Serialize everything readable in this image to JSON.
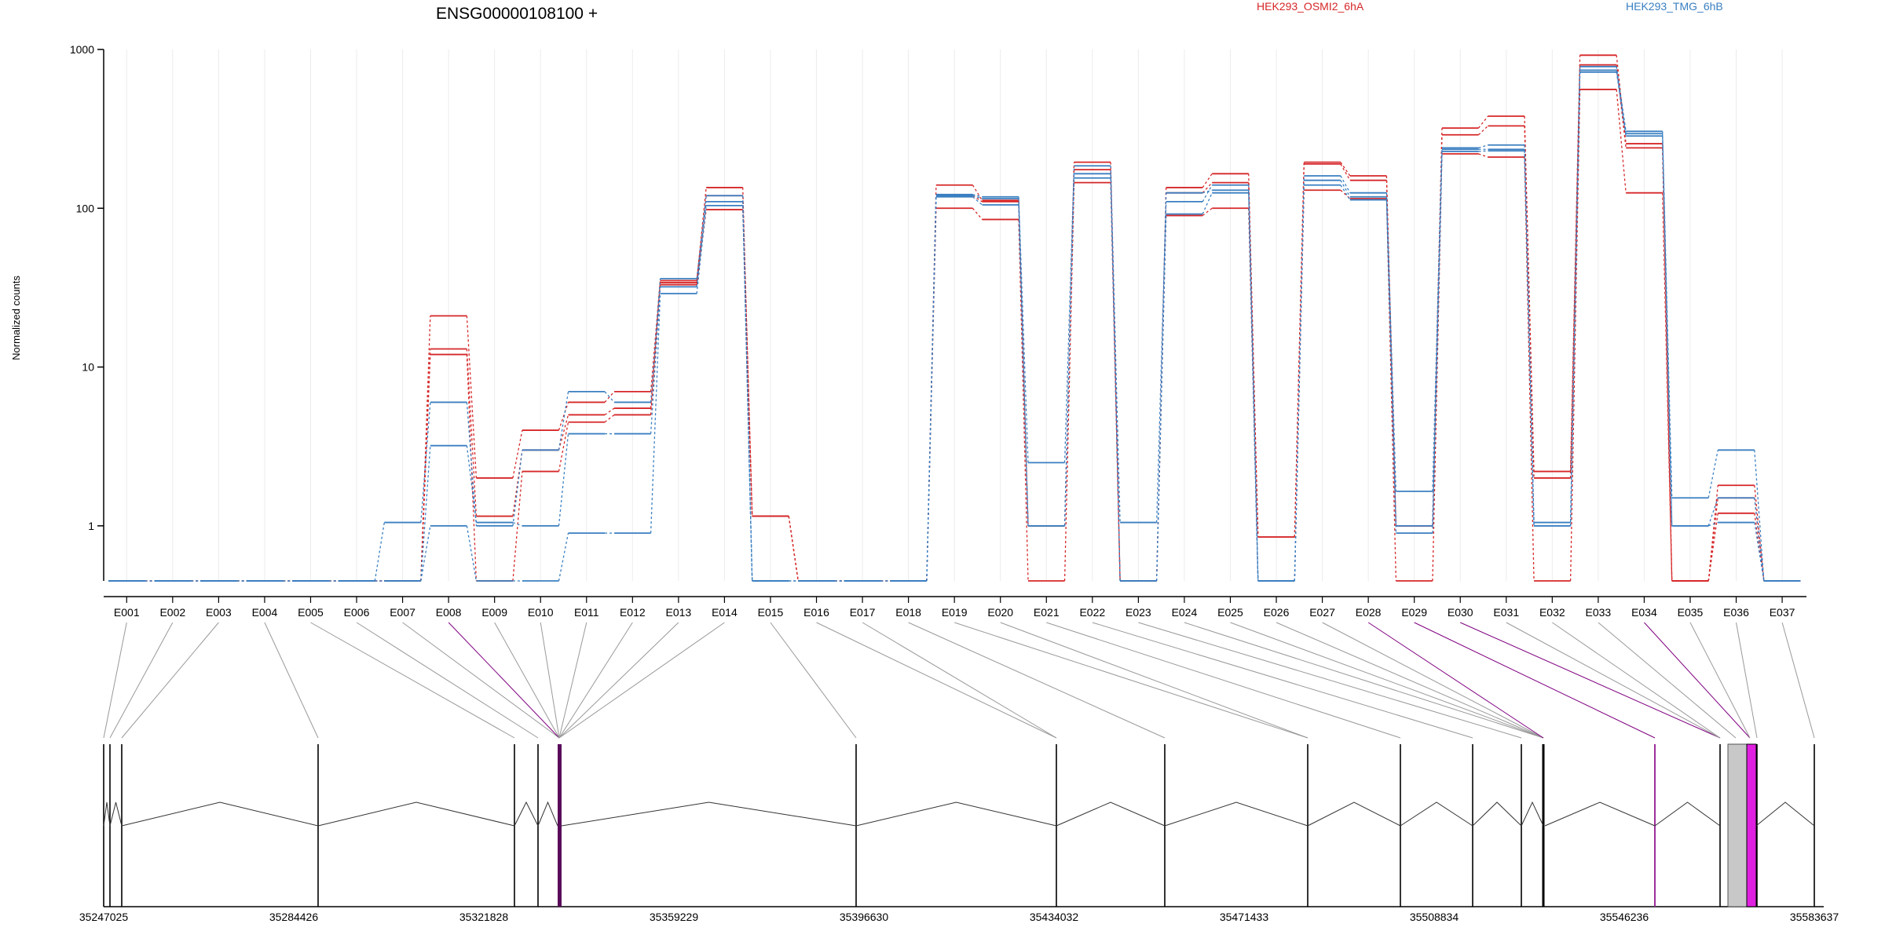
{
  "chart_data": {
    "type": "line",
    "title": "ENSG00000108100 +",
    "ylabel": "Normalized counts",
    "xlabel": "",
    "y_scale": "log",
    "ylim": [
      0.45,
      1000
    ],
    "y_ticks": [
      1,
      10,
      100,
      1000
    ],
    "grid": "vertical",
    "legend_position": "top",
    "categories": [
      "E001",
      "E002",
      "E003",
      "E004",
      "E005",
      "E006",
      "E007",
      "E008",
      "E009",
      "E010",
      "E011",
      "E012",
      "E013",
      "E014",
      "E015",
      "E016",
      "E017",
      "E018",
      "E019",
      "E020",
      "E021",
      "E022",
      "E023",
      "E024",
      "E025",
      "E026",
      "E027",
      "E028",
      "E029",
      "E030",
      "E031",
      "E032",
      "E033",
      "E034",
      "E035",
      "E036",
      "E037"
    ],
    "groups": [
      {
        "name": "HEK293_OSMI2_6hA",
        "color": "#d62728"
      },
      {
        "name": "HEK293_TMG_6hB",
        "color": "#3a7fc1"
      }
    ],
    "series": [
      {
        "group": "HEK293_OSMI2_6hA",
        "values": [
          0.45,
          0.45,
          0.45,
          0.45,
          0.45,
          0.45,
          0.45,
          21,
          2.0,
          4.0,
          6.0,
          7.0,
          35,
          135,
          1.15,
          0.45,
          0.45,
          0.45,
          140,
          112,
          1.0,
          195,
          0.45,
          135,
          165,
          0.85,
          195,
          160,
          1.0,
          320,
          380,
          2.2,
          920,
          255,
          0.45,
          1.8,
          0.45
        ]
      },
      {
        "group": "HEK293_OSMI2_6hA",
        "values": [
          0.45,
          0.45,
          0.45,
          0.45,
          0.45,
          0.45,
          0.45,
          13,
          1.15,
          3.0,
          5.0,
          5.5,
          34,
          120,
          1.15,
          0.45,
          0.45,
          0.45,
          120,
          110,
          1.0,
          175,
          0.45,
          125,
          145,
          0.85,
          190,
          150,
          1.0,
          290,
          330,
          2.0,
          800,
          240,
          0.45,
          1.5,
          0.45
        ]
      },
      {
        "group": "HEK293_OSMI2_6hA",
        "values": [
          0.45,
          0.45,
          0.45,
          0.45,
          0.45,
          0.45,
          0.45,
          12,
          0.45,
          2.2,
          4.5,
          5.0,
          33,
          98,
          1.15,
          0.45,
          0.45,
          0.45,
          100,
          85,
          0.45,
          145,
          0.45,
          90,
          100,
          0.45,
          130,
          115,
          0.45,
          220,
          210,
          0.45,
          560,
          125,
          0.45,
          1.2,
          0.45
        ]
      },
      {
        "group": "HEK293_TMG_6hB",
        "values": [
          0.45,
          0.45,
          0.45,
          0.45,
          0.45,
          0.45,
          1.05,
          6.0,
          1.0,
          3.0,
          7.0,
          6.0,
          36,
          120,
          0.45,
          0.45,
          0.45,
          0.45,
          122,
          118,
          2.5,
          185,
          1.05,
          110,
          140,
          0.45,
          160,
          125,
          1.65,
          240,
          250,
          1.05,
          780,
          305,
          1.5,
          3.0,
          0.45
        ]
      },
      {
        "group": "HEK293_TMG_6hB",
        "values": [
          0.45,
          0.45,
          0.45,
          0.45,
          0.45,
          0.45,
          0.45,
          3.2,
          1.05,
          1.0,
          3.8,
          3.8,
          32,
          110,
          0.45,
          0.45,
          0.45,
          0.45,
          120,
          115,
          1.0,
          165,
          0.45,
          125,
          130,
          0.45,
          150,
          118,
          1.0,
          235,
          235,
          1.0,
          740,
          295,
          1.0,
          1.5,
          0.45
        ]
      },
      {
        "group": "HEK293_TMG_6hB",
        "values": [
          0.45,
          0.45,
          0.45,
          0.45,
          0.45,
          0.45,
          0.45,
          1.0,
          0.45,
          0.45,
          0.9,
          0.9,
          29,
          104,
          0.45,
          0.45,
          0.45,
          0.45,
          118,
          105,
          1.0,
          155,
          0.45,
          92,
          125,
          0.45,
          140,
          113,
          0.9,
          228,
          230,
          1.0,
          720,
          285,
          1.0,
          1.05,
          0.45
        ]
      }
    ]
  },
  "gene_model": {
    "coordinate_labels": [
      "35247025",
      "35284426",
      "35321828",
      "35359229",
      "35396630",
      "35434032",
      "35471433",
      "35508834",
      "35546236",
      "35583637"
    ]
  }
}
